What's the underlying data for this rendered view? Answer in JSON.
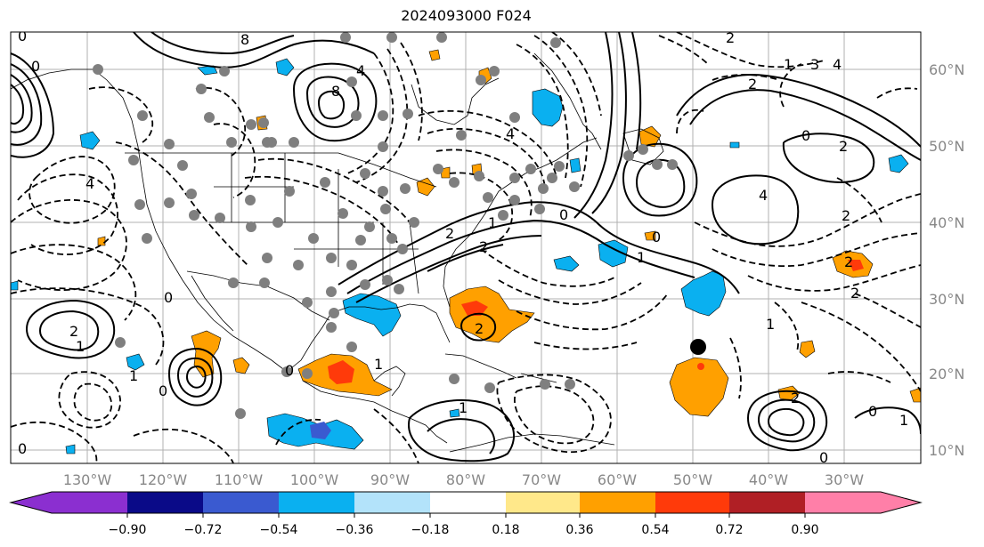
{
  "title": "2024093000 F024",
  "map": {
    "lon_labels": [
      "130°W",
      "120°W",
      "110°W",
      "100°W",
      "90°W",
      "80°W",
      "70°W",
      "60°W",
      "50°W",
      "40°W",
      "30°W"
    ],
    "lat_labels": [
      "60°N",
      "50°N",
      "40°N",
      "30°N",
      "20°N",
      "10°N"
    ],
    "contour_labels": [
      "0",
      "0",
      "8",
      "8",
      "4",
      "4",
      "4",
      "2",
      "2",
      "2",
      "2",
      "2",
      "1",
      "1",
      "1",
      "0",
      "0",
      "0",
      "0",
      "1",
      "2",
      "3",
      "4",
      "4",
      "1",
      "2",
      "2",
      "2",
      "2",
      "1",
      "1",
      "0",
      "0",
      "1",
      "2",
      "0",
      "0",
      "1",
      "0"
    ]
  },
  "colorbar": {
    "tick_labels": [
      "−0.90",
      "−0.72",
      "−0.54",
      "−0.36",
      "−0.18",
      "0.18",
      "0.36",
      "0.54",
      "0.72",
      "0.90"
    ],
    "colors": [
      "#8b2fd0",
      "#0a0a88",
      "#3a5ad0",
      "#0ab0f0",
      "#b3e3fa",
      "#ffffff",
      "#ffe88a",
      "#ffa000",
      "#ff3a0a",
      "#b01f25",
      "#ff7fa8"
    ]
  },
  "colors": {
    "warm": "#ffa000",
    "warm_strong": "#ff3a0a",
    "cool": "#0ab0f0",
    "cool_strong": "#3a5ad0",
    "dots": "#7f7f7f",
    "marker": "#000000"
  }
}
